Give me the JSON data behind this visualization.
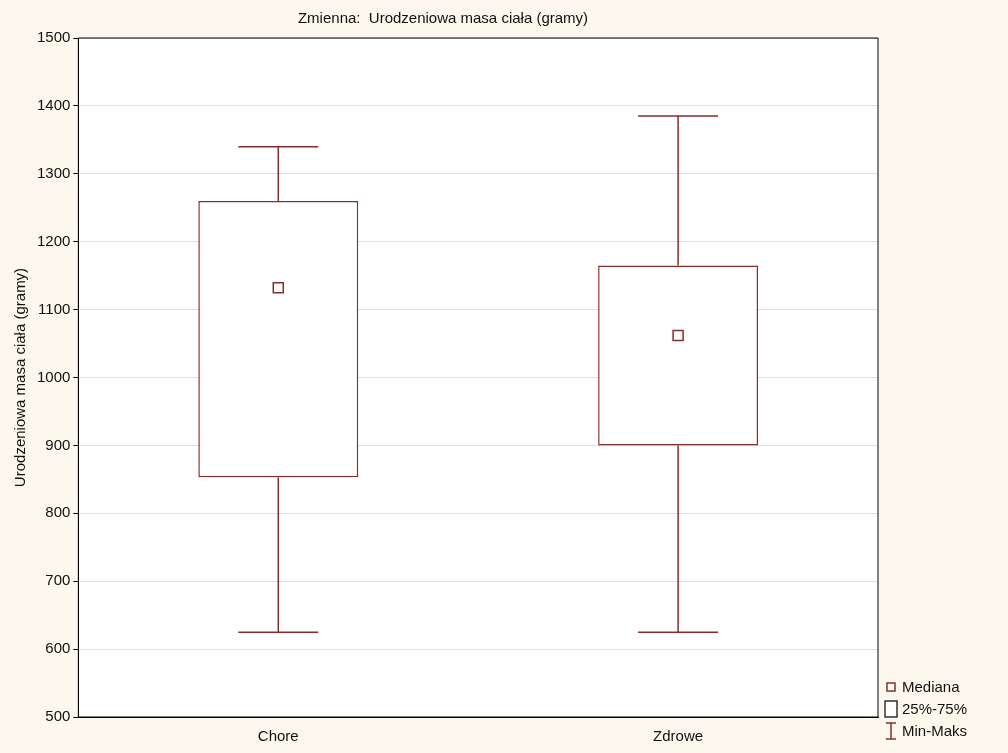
{
  "chart_data": {
    "type": "box",
    "title": "Zmienna:  Urodzeniowa masa ciała (gramy)",
    "ylabel": "Urodzeniowa masa ciała (gramy)",
    "categories": [
      "Chore",
      "Zdrowe"
    ],
    "boxes": [
      {
        "low": 625,
        "q1": 853,
        "median": 1132,
        "q3": 1260,
        "high": 1340
      },
      {
        "low": 625,
        "q1": 900,
        "median": 1062,
        "q3": 1165,
        "high": 1385
      }
    ],
    "color": "#8b2c2c",
    "ylim": [
      500,
      1500
    ],
    "yticks": [
      500,
      600,
      700,
      800,
      900,
      1000,
      1100,
      1200,
      1300,
      1400,
      1500
    ],
    "grid": "y",
    "annotations": [
      "Mediana",
      "25%-75%",
      "Min-Maks"
    ]
  }
}
